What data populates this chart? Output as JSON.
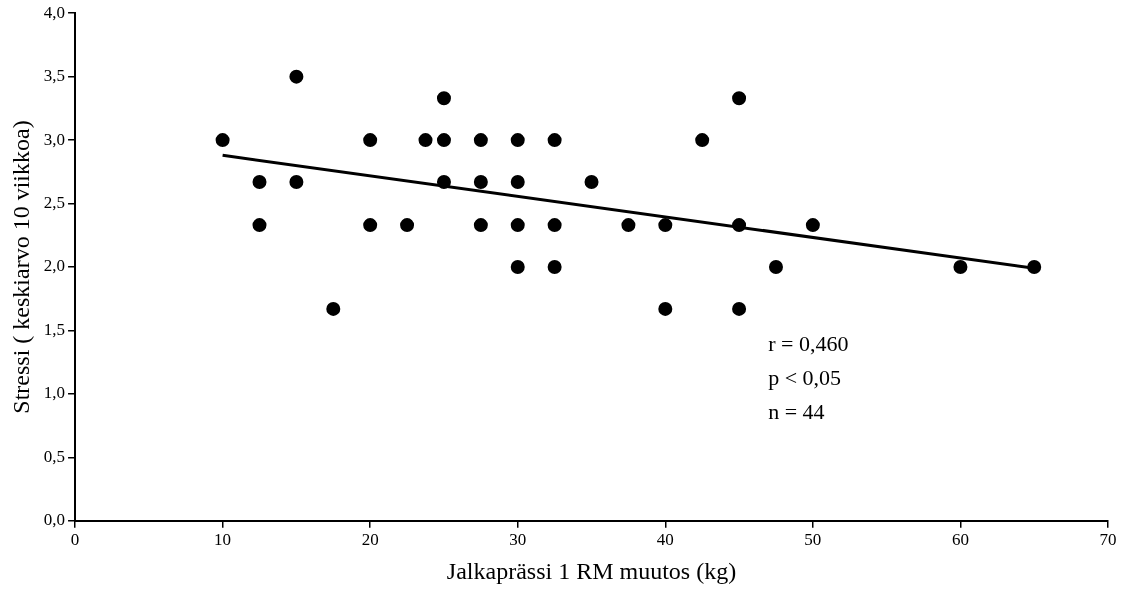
{
  "chart_data": {
    "type": "scatter",
    "xlabel": "Jalkaprässi 1 RM muutos (kg)",
    "ylabel": "Stressi ( keskiarvo 10 viikkoa)",
    "series": [
      {
        "type": "scatter",
        "color": "#000000",
        "marker": "circle",
        "x": [
          10,
          12.5,
          12.5,
          15,
          15,
          17.5,
          20,
          20,
          22.5,
          23.75,
          25,
          25,
          25,
          27.5,
          27.5,
          27.5,
          30,
          30,
          30,
          30,
          32.5,
          32.5,
          32.5,
          35,
          37.5,
          40,
          40,
          42.5,
          45,
          45,
          45,
          47.5,
          50,
          60,
          65
        ],
        "values": [
          3.0,
          2.67,
          2.33,
          3.5,
          2.67,
          1.67,
          3.0,
          2.33,
          2.33,
          3.0,
          3.33,
          3.0,
          2.67,
          3.0,
          2.67,
          2.33,
          3.0,
          2.67,
          2.33,
          2.0,
          3.0,
          2.33,
          2.0,
          2.67,
          2.33,
          2.33,
          1.67,
          3.0,
          3.33,
          2.33,
          1.67,
          2.0,
          2.33,
          2.0,
          2.0
        ]
      },
      {
        "type": "line",
        "color": "#000000",
        "marker": "none",
        "x": [
          10,
          65
        ],
        "values": [
          2.88,
          1.99
        ]
      }
    ],
    "xlim": [
      0,
      70
    ],
    "xticks": [
      0,
      10,
      20,
      30,
      40,
      50,
      60,
      70
    ],
    "ylim": [
      0,
      4
    ],
    "yticks": [
      {
        "value": 0,
        "label": "0,0"
      },
      {
        "value": 0.5,
        "label": "0,5"
      },
      {
        "value": 1,
        "label": "1,0"
      },
      {
        "value": 1.5,
        "label": "1,5"
      },
      {
        "value": 2,
        "label": "2,0"
      },
      {
        "value": 2.5,
        "label": "2,5"
      },
      {
        "value": 3,
        "label": "3,0"
      },
      {
        "value": 3.5,
        "label": "3,5"
      },
      {
        "value": 4,
        "label": "4,0"
      }
    ],
    "grid": false,
    "legend": false,
    "annotations": [
      "r = 0,460",
      "p < 0,05",
      "n = 44"
    ]
  }
}
